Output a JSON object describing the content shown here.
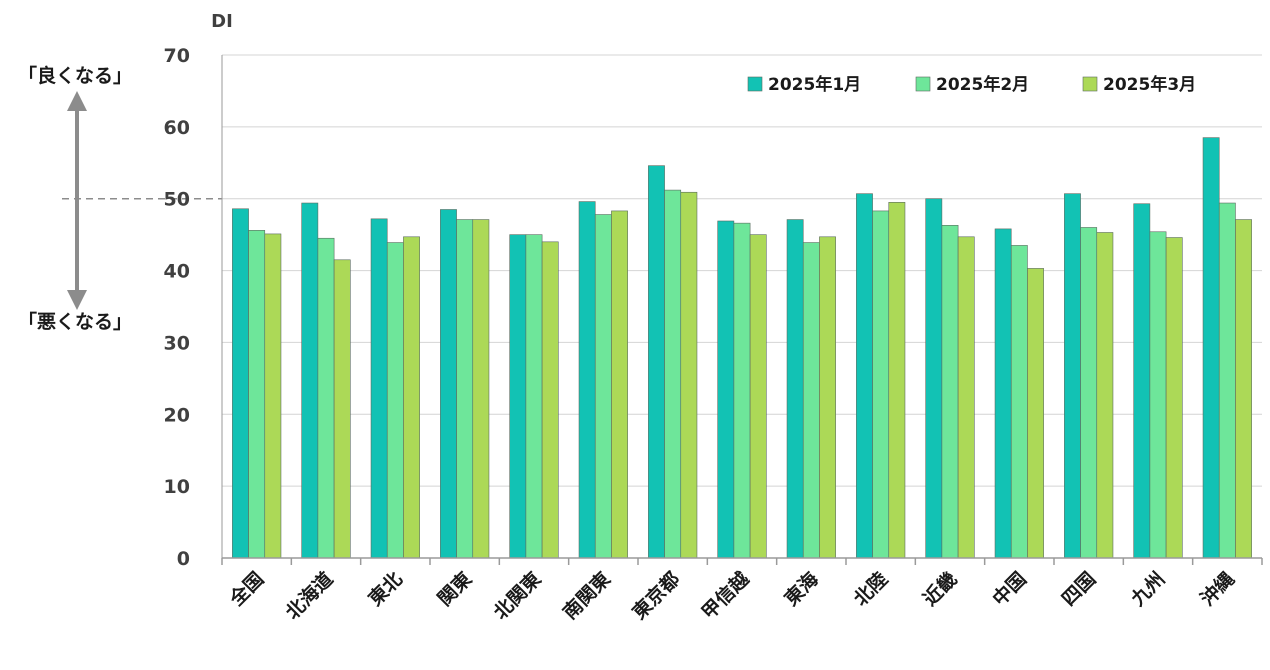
{
  "chart_data": {
    "type": "bar",
    "ylabel": "DI",
    "ylim": [
      0,
      70
    ],
    "yticks": [
      0,
      10,
      20,
      30,
      40,
      50,
      60,
      70
    ],
    "grid": true,
    "legend_position": "top-right",
    "reference_line": 50,
    "categories": [
      "全国",
      "北海道",
      "東北",
      "関東",
      "北関東",
      "南関東",
      "東京都",
      "甲信越",
      "東海",
      "北陸",
      "近畿",
      "中国",
      "四国",
      "九州",
      "沖縄"
    ],
    "series": [
      {
        "name": "2025年1月",
        "color": "#12c2b4",
        "values": [
          48.6,
          49.4,
          47.2,
          48.5,
          45.0,
          49.6,
          54.6,
          46.9,
          47.1,
          50.7,
          50.0,
          45.8,
          50.7,
          49.3,
          58.5
        ]
      },
      {
        "name": "2025年2月",
        "color": "#6ee69a",
        "values": [
          45.6,
          44.5,
          43.9,
          47.1,
          45.0,
          47.8,
          51.2,
          46.6,
          43.9,
          48.3,
          46.3,
          43.5,
          46.0,
          45.4,
          49.4
        ]
      },
      {
        "name": "2025年3月",
        "color": "#acd957",
        "values": [
          45.1,
          41.5,
          44.7,
          47.1,
          44.0,
          48.3,
          50.9,
          45.0,
          44.7,
          49.5,
          44.7,
          40.3,
          45.3,
          44.6,
          47.1
        ]
      }
    ]
  },
  "side_labels": {
    "better": "「良くなる」",
    "worse": "「悪くなる」"
  }
}
